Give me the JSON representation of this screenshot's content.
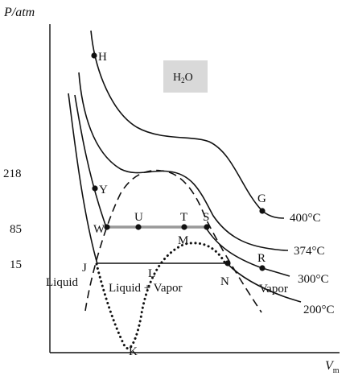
{
  "diagram": {
    "y_axis_label": "P/atm",
    "x_axis_label": "V",
    "x_axis_subscript": "m",
    "compound": {
      "main": "H",
      "subscript": "2",
      "tail": "O",
      "box_color": "#d9d9d9"
    },
    "pressure_ticks": [
      "218",
      "85",
      "15"
    ],
    "isotherms": [
      "400°C",
      "374°C",
      "300°C",
      "200°C"
    ],
    "points": {
      "H": "H",
      "Y": "Y",
      "W": "W",
      "U": "U",
      "T": "T",
      "S": "S",
      "G": "G",
      "M": "M",
      "J": "J",
      "L": "L",
      "R": "R",
      "N": "N",
      "K": "K"
    },
    "regions": {
      "liquid": "Liquid",
      "liquid_vapor": "Liquid + Vapor",
      "vapor": "Vapor"
    }
  }
}
